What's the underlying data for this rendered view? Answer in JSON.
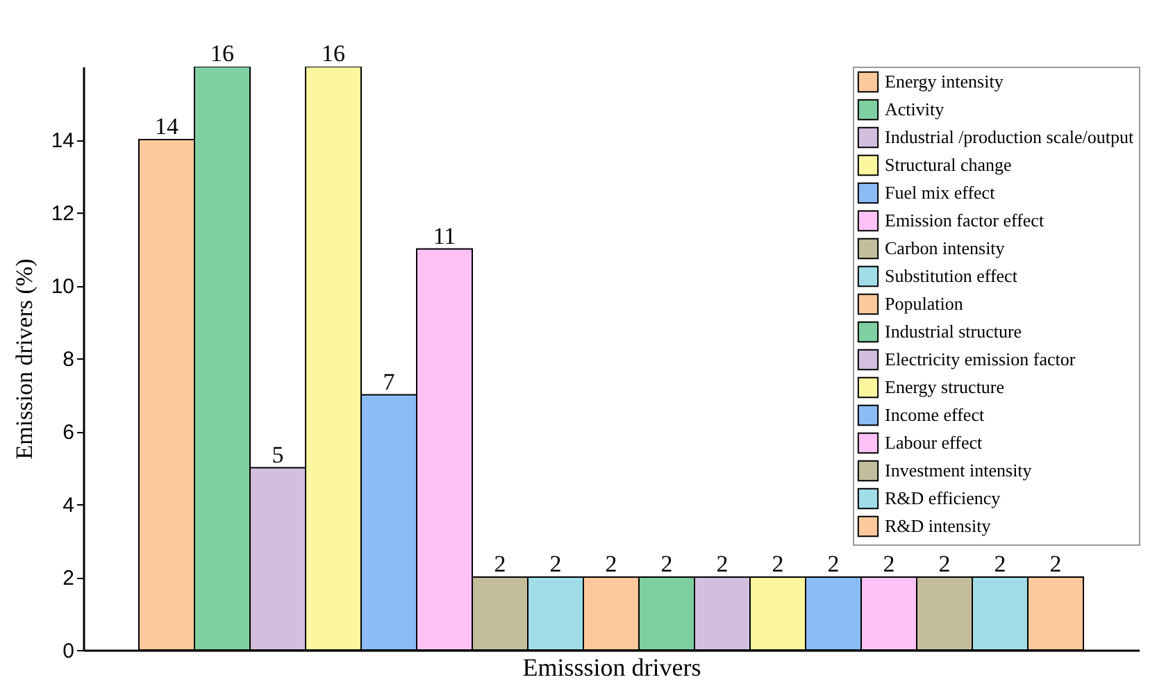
{
  "chart_data": {
    "type": "bar",
    "xlabel": "Emisssion drivers",
    "ylabel": "Emission drivers (%)",
    "categories": [
      null,
      null,
      null,
      null,
      null,
      null,
      null,
      null,
      null,
      null,
      null,
      null,
      null,
      null,
      null,
      null,
      null
    ],
    "stacked": true,
    "series": [
      {
        "name": "Energy intensity",
        "color": "#fdc99c",
        "values": [
          14,
          null,
          null,
          null,
          null,
          null,
          null,
          null,
          null,
          null,
          null,
          null,
          null,
          null,
          null,
          null,
          null
        ]
      },
      {
        "name": "Activity",
        "color": "#7fcfa0",
        "values": [
          null,
          16,
          null,
          null,
          null,
          null,
          null,
          null,
          null,
          null,
          null,
          null,
          null,
          null,
          null,
          null,
          null
        ]
      },
      {
        "name": "Industrial /production scale/output",
        "color": "#d3bede",
        "values": [
          null,
          null,
          5,
          null,
          null,
          null,
          null,
          null,
          null,
          null,
          null,
          null,
          null,
          null,
          null,
          null,
          null
        ]
      },
      {
        "name": "Structural change",
        "color": "#fdf6a0",
        "values": [
          null,
          null,
          null,
          16,
          null,
          null,
          null,
          null,
          null,
          null,
          null,
          null,
          null,
          null,
          null,
          null,
          null
        ]
      },
      {
        "name": "Fuel mix effect",
        "color": "#8cbcf5",
        "values": [
          null,
          null,
          null,
          null,
          7,
          null,
          null,
          null,
          null,
          null,
          null,
          null,
          null,
          null,
          null,
          null,
          null
        ]
      },
      {
        "name": "Emission factor effect",
        "color": "#fdc2f5",
        "values": [
          null,
          null,
          null,
          null,
          null,
          11,
          null,
          null,
          null,
          null,
          null,
          null,
          null,
          null,
          null,
          null,
          null
        ]
      },
      {
        "name": "Carbon intensity",
        "color": "#c4bd9c",
        "values": [
          null,
          null,
          null,
          null,
          null,
          null,
          2,
          null,
          null,
          null,
          null,
          null,
          null,
          null,
          null,
          null,
          null
        ]
      },
      {
        "name": "Substitution effect",
        "color": "#a1dde9",
        "values": [
          null,
          null,
          null,
          null,
          null,
          null,
          null,
          2,
          null,
          null,
          null,
          null,
          null,
          null,
          null,
          null,
          null
        ]
      },
      {
        "name": "Population",
        "color": "#fdc99c",
        "values": [
          null,
          null,
          null,
          null,
          null,
          null,
          null,
          null,
          2,
          null,
          null,
          null,
          null,
          null,
          null,
          null,
          null
        ]
      },
      {
        "name": "Industrial structure",
        "color": "#7fcfa0",
        "values": [
          null,
          null,
          null,
          null,
          null,
          null,
          null,
          null,
          null,
          2,
          null,
          null,
          null,
          null,
          null,
          null,
          null
        ]
      },
      {
        "name": "Electricity emission factor",
        "color": "#d3bede",
        "values": [
          null,
          null,
          null,
          null,
          null,
          null,
          null,
          null,
          null,
          null,
          2,
          null,
          null,
          null,
          null,
          null,
          null
        ]
      },
      {
        "name": "Energy structure",
        "color": "#fdf6a0",
        "values": [
          null,
          null,
          null,
          null,
          null,
          null,
          null,
          null,
          null,
          null,
          null,
          2,
          null,
          null,
          null,
          null,
          null
        ]
      },
      {
        "name": "Income effect",
        "color": "#8cbcf5",
        "values": [
          null,
          null,
          null,
          null,
          null,
          null,
          null,
          null,
          null,
          null,
          null,
          null,
          2,
          null,
          null,
          null,
          null
        ]
      },
      {
        "name": "Labour effect",
        "color": "#fdc2f5",
        "values": [
          null,
          null,
          null,
          null,
          null,
          null,
          null,
          null,
          null,
          null,
          null,
          null,
          null,
          2,
          null,
          null,
          null
        ]
      },
      {
        "name": "Investment intensity",
        "color": "#c4bd9c",
        "values": [
          null,
          null,
          null,
          null,
          null,
          null,
          null,
          null,
          null,
          null,
          null,
          null,
          null,
          null,
          2,
          null,
          null
        ]
      },
      {
        "name": "R&D efficiency",
        "color": "#a1dde9",
        "values": [
          null,
          null,
          null,
          null,
          null,
          null,
          null,
          null,
          null,
          null,
          null,
          null,
          null,
          null,
          null,
          2,
          null
        ]
      },
      {
        "name": "R&D intensity",
        "color": "#fdc99c",
        "values": [
          null,
          null,
          null,
          null,
          null,
          null,
          null,
          null,
          null,
          null,
          null,
          null,
          null,
          null,
          null,
          null,
          2
        ]
      }
    ],
    "ylim": [
      0,
      16
    ],
    "yticks": [
      0,
      2,
      4,
      6,
      8,
      10,
      12,
      14
    ],
    "data_labels": true,
    "legend": "top right",
    "tick_labels": "y",
    "grid": false
  }
}
